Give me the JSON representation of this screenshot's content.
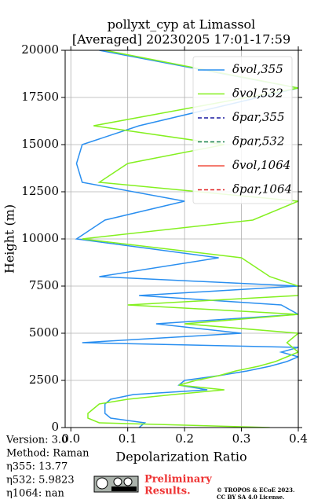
{
  "chart_data": {
    "type": "line",
    "title": [
      "pollyxt_cyp at Limassol",
      "[Averaged] 20230205 17:01-17:59"
    ],
    "xlabel": "Depolarization Ratio",
    "ylabel": "Height (m)",
    "xlim": [
      -0.01,
      0.4
    ],
    "xticks": [
      {
        "value": 0,
        "label": "0.0"
      },
      0.1,
      0.2,
      0.3,
      0.4
    ],
    "ylim": [
      0,
      20000
    ],
    "yticks": [
      0,
      2500,
      5000,
      7500,
      10000,
      12500,
      15000,
      17500,
      20000
    ],
    "grid": true,
    "legend": "upper right",
    "y": [
      0,
      250,
      500,
      750,
      1000,
      1250,
      1500,
      1750,
      2000,
      2250,
      2500,
      2750,
      3000,
      3250,
      3500,
      3750,
      4000,
      4250,
      4500,
      5000,
      5500,
      6000,
      6500,
      7000,
      7500,
      8000,
      9000,
      10000,
      11000,
      12000,
      13000,
      14000,
      15000,
      16000,
      18000,
      20000
    ],
    "series": [
      {
        "name": "δvol,355",
        "color": "#2a8ff0",
        "linestyle": "solid",
        "values": [
          0.12,
          0.13,
          0.07,
          0.06,
          0.06,
          0.06,
          0.07,
          0.11,
          0.24,
          0.19,
          0.2,
          0.26,
          0.31,
          0.35,
          0.38,
          0.4,
          0.37,
          0.4,
          0.02,
          0.3,
          0.15,
          0.4,
          0.37,
          0.12,
          0.4,
          0.05,
          0.26,
          0.01,
          0.06,
          0.2,
          0.02,
          0.01,
          0.02,
          0.12,
          0.4,
          0.05
        ]
      },
      {
        "name": "δvol,532",
        "color": "#84f020",
        "linestyle": "solid",
        "values": [
          0.35,
          0.05,
          0.03,
          0.03,
          0.04,
          0.05,
          0.1,
          0.18,
          0.27,
          0.19,
          0.22,
          0.26,
          0.29,
          0.33,
          0.36,
          0.38,
          0.4,
          0.39,
          0.38,
          0.4,
          0.2,
          0.4,
          0.1,
          0.4,
          0.4,
          0.35,
          0.3,
          0.02,
          0.32,
          0.4,
          0.05,
          0.1,
          0.27,
          0.04,
          0.4,
          0.06
        ]
      },
      {
        "name": "δpar,355",
        "color": "#1a1aa0",
        "linestyle": "dashed",
        "values": [
          null,
          null,
          null,
          null,
          null,
          null,
          null,
          null,
          null,
          null,
          null,
          null,
          null,
          null,
          null,
          null,
          null,
          null,
          null,
          null,
          null,
          null,
          null,
          null,
          null,
          null,
          null,
          null,
          null,
          null,
          null,
          null,
          null,
          null,
          null,
          null
        ]
      },
      {
        "name": "δpar,532",
        "color": "#1a8050",
        "linestyle": "dashed",
        "values": [
          null,
          null,
          null,
          null,
          null,
          null,
          null,
          null,
          null,
          null,
          null,
          null,
          null,
          null,
          null,
          null,
          null,
          null,
          null,
          null,
          null,
          null,
          null,
          null,
          null,
          null,
          null,
          null,
          null,
          null,
          null,
          null,
          null,
          null,
          null,
          null
        ]
      },
      {
        "name": "δvol,1064",
        "color": "#f05040",
        "linestyle": "solid",
        "values": [
          null,
          null,
          null,
          null,
          null,
          null,
          null,
          null,
          null,
          null,
          null,
          null,
          null,
          null,
          null,
          null,
          null,
          null,
          null,
          null,
          null,
          null,
          null,
          null,
          null,
          null,
          null,
          null,
          null,
          null,
          null,
          null,
          null,
          null,
          null,
          null
        ]
      },
      {
        "name": "δpar,1064",
        "color": "#e02020",
        "linestyle": "dashed",
        "values": [
          null,
          null,
          null,
          null,
          null,
          null,
          null,
          null,
          null,
          null,
          null,
          null,
          null,
          null,
          null,
          null,
          null,
          null,
          null,
          null,
          null,
          null,
          null,
          null,
          null,
          null,
          null,
          null,
          null,
          null,
          null,
          null,
          null,
          null,
          null,
          null
        ]
      }
    ],
    "annotations": [
      "Version: 3.0",
      "Method: Raman",
      "η355:  13.77",
      "η532: 5.9823",
      "η1064:    nan"
    ],
    "stamp": [
      "Preliminary",
      "Results."
    ],
    "copyright": [
      "© TROPOS & ECoE 2023.",
      "CC BY SA 4.0 License."
    ]
  }
}
